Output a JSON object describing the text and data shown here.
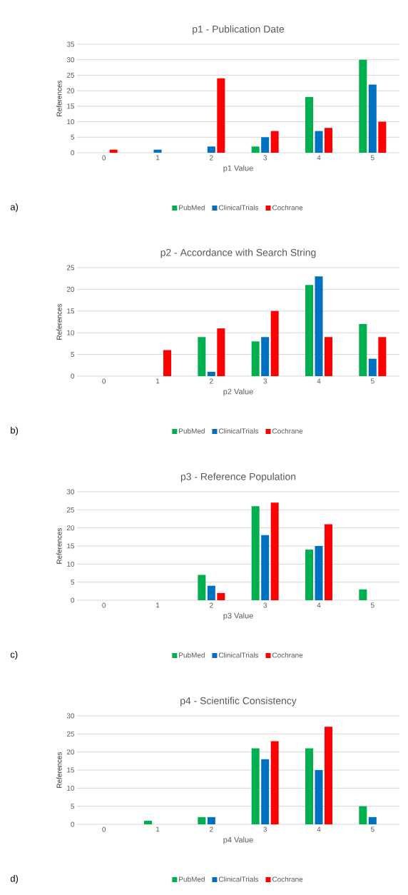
{
  "chart_data": [
    {
      "type": "bar",
      "title": "p1 - Publication Date",
      "xlabel": "p1 Value",
      "ylabel": "References",
      "categories": [
        "0",
        "1",
        "2",
        "3",
        "4",
        "5"
      ],
      "series": [
        {
          "name": "PubMed",
          "color": "#00b050",
          "values": [
            0,
            0,
            0,
            2,
            18,
            30
          ]
        },
        {
          "name": "ClinicalTrials",
          "color": "#0070c0",
          "values": [
            0,
            1,
            2,
            5,
            7,
            22
          ]
        },
        {
          "name": "Cochrane",
          "color": "#ff0000",
          "values": [
            1,
            0,
            24,
            7,
            8,
            10
          ]
        }
      ],
      "ylim": [
        0,
        35
      ],
      "yticks": [
        0,
        5,
        10,
        15,
        20,
        25,
        30,
        35
      ],
      "grid": "y",
      "legend": "bottom",
      "annotations": [
        "a)"
      ]
    },
    {
      "type": "bar",
      "title": "p2 - Accordance with Search String",
      "xlabel": "p2 Value",
      "ylabel": "References",
      "categories": [
        "0",
        "1",
        "2",
        "3",
        "4",
        "5"
      ],
      "series": [
        {
          "name": "PubMed",
          "color": "#00b050",
          "values": [
            0,
            0,
            9,
            8,
            21,
            12
          ]
        },
        {
          "name": "ClinicalTrials",
          "color": "#0070c0",
          "values": [
            0,
            0,
            1,
            9,
            23,
            4
          ]
        },
        {
          "name": "Cochrane",
          "color": "#ff0000",
          "values": [
            0,
            6,
            11,
            15,
            9,
            9
          ]
        }
      ],
      "ylim": [
        0,
        25
      ],
      "yticks": [
        0,
        5,
        10,
        15,
        20,
        25
      ],
      "grid": "y",
      "legend": "bottom",
      "annotations": [
        "b)"
      ]
    },
    {
      "type": "bar",
      "title": "p3 - Reference Population",
      "xlabel": "p3 Value",
      "ylabel": "References",
      "categories": [
        "0",
        "1",
        "2",
        "3",
        "4",
        "5"
      ],
      "series": [
        {
          "name": "PubMed",
          "color": "#00b050",
          "values": [
            0,
            0,
            7,
            26,
            14,
            3
          ]
        },
        {
          "name": "ClinicalTrials",
          "color": "#0070c0",
          "values": [
            0,
            0,
            4,
            18,
            15,
            0
          ]
        },
        {
          "name": "Cochrane",
          "color": "#ff0000",
          "values": [
            0,
            0,
            2,
            27,
            21,
            0
          ]
        }
      ],
      "ylim": [
        0,
        30
      ],
      "yticks": [
        0,
        5,
        10,
        15,
        20,
        25,
        30
      ],
      "grid": "y",
      "legend": "bottom",
      "annotations": [
        "c)"
      ]
    },
    {
      "type": "bar",
      "title": "p4 - Scientific Consistency",
      "xlabel": "p4 Value",
      "ylabel": "References",
      "categories": [
        "0",
        "1",
        "2",
        "3",
        "4",
        "5"
      ],
      "series": [
        {
          "name": "PubMed",
          "color": "#00b050",
          "values": [
            0,
            1,
            2,
            21,
            21,
            5
          ]
        },
        {
          "name": "ClinicalTrials",
          "color": "#0070c0",
          "values": [
            0,
            0,
            2,
            18,
            15,
            2
          ]
        },
        {
          "name": "Cochrane",
          "color": "#ff0000",
          "values": [
            0,
            0,
            0,
            23,
            27,
            0
          ]
        }
      ],
      "ylim": [
        0,
        30
      ],
      "yticks": [
        0,
        5,
        10,
        15,
        20,
        25,
        30
      ],
      "grid": "y",
      "legend": "bottom",
      "annotations": [
        "d)"
      ]
    }
  ]
}
